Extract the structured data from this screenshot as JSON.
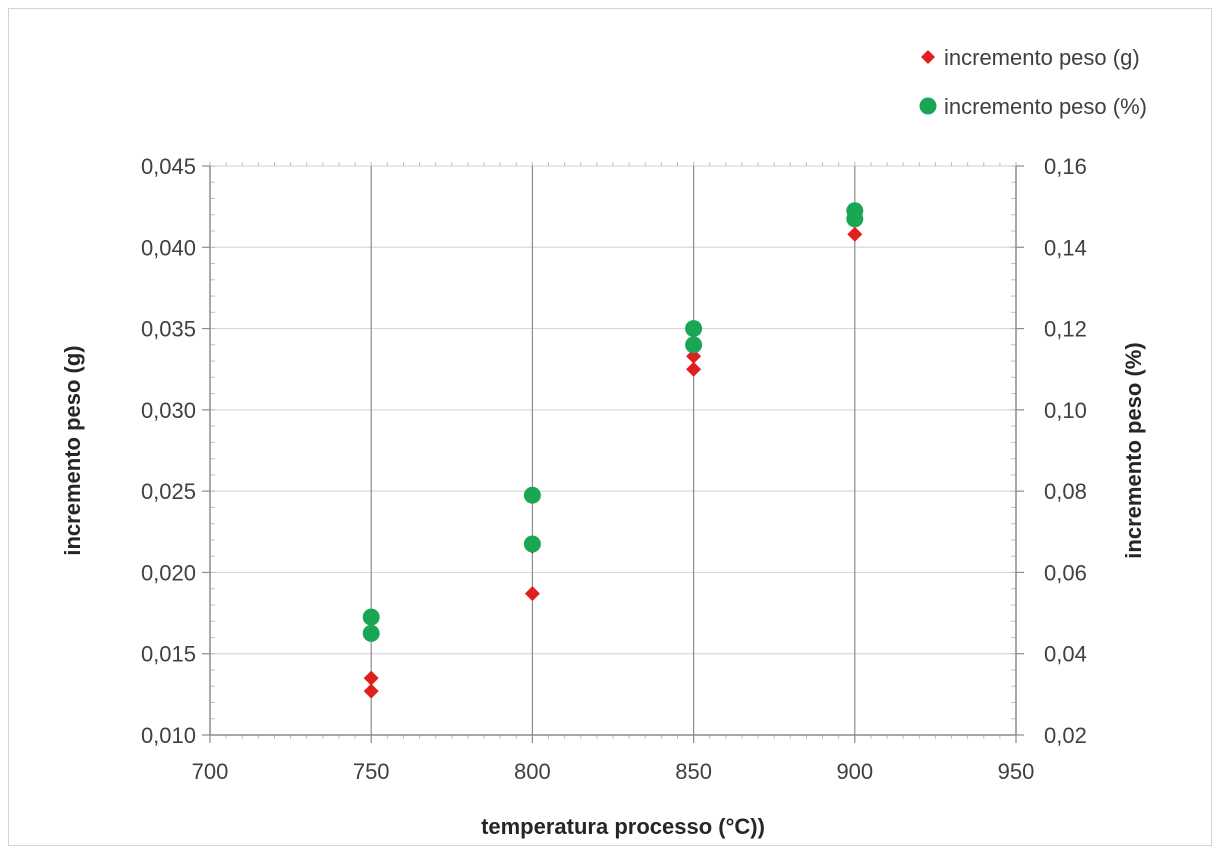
{
  "chart_data": {
    "type": "scatter",
    "xlabel": "temperatura processo (°C))",
    "ylabel": "incremento peso (g)",
    "y2label": "incremento peso (%)",
    "xlim": [
      700,
      950
    ],
    "ylim": [
      0.01,
      0.045
    ],
    "y2lim": [
      0.02,
      0.16
    ],
    "x_ticks": [
      700,
      750,
      800,
      850,
      900,
      950
    ],
    "x_tick_labels": [
      "700",
      "750",
      "800",
      "850",
      "900",
      "950"
    ],
    "y_ticks": [
      0.01,
      0.015,
      0.02,
      0.025,
      0.03,
      0.035,
      0.04,
      0.045
    ],
    "y_tick_labels": [
      "0,010",
      "0,015",
      "0,020",
      "0,025",
      "0,030",
      "0,035",
      "0,040",
      "0,045"
    ],
    "y2_ticks": [
      0.02,
      0.04,
      0.06,
      0.08,
      0.1,
      0.12,
      0.14,
      0.16
    ],
    "y2_tick_labels": [
      "0,02",
      "0,04",
      "0,06",
      "0,08",
      "0,10",
      "0,12",
      "0,14",
      "0,16"
    ],
    "grid": "vertical and horizontal major gridlines",
    "legend_position": "top-right",
    "series": [
      {
        "name": "incremento peso (g)",
        "axis": "left",
        "marker": "diamond",
        "color": "#e0201c",
        "points": [
          {
            "x": 750,
            "y": 0.0135
          },
          {
            "x": 750,
            "y": 0.0127
          },
          {
            "x": 800,
            "y": 0.0216
          },
          {
            "x": 800,
            "y": 0.0187
          },
          {
            "x": 850,
            "y": 0.0333
          },
          {
            "x": 850,
            "y": 0.0325
          },
          {
            "x": 900,
            "y": 0.0408
          }
        ]
      },
      {
        "name": "incremento peso (%)",
        "axis": "right",
        "marker": "circle",
        "color": "#1aa653",
        "points": [
          {
            "x": 750,
            "y": 0.049
          },
          {
            "x": 750,
            "y": 0.045
          },
          {
            "x": 800,
            "y": 0.079
          },
          {
            "x": 800,
            "y": 0.067
          },
          {
            "x": 850,
            "y": 0.12
          },
          {
            "x": 850,
            "y": 0.116
          },
          {
            "x": 900,
            "y": 0.149
          },
          {
            "x": 900,
            "y": 0.147
          }
        ]
      }
    ]
  }
}
